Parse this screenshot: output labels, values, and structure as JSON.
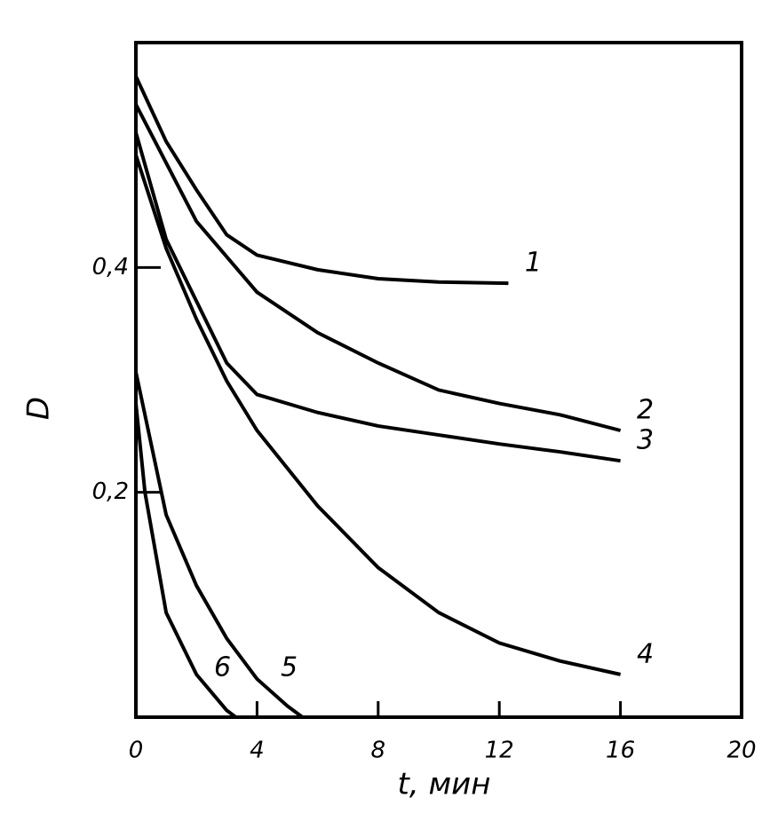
{
  "chart_data": {
    "type": "line",
    "x_label": "t, мин",
    "y_label": "D",
    "xlim": [
      0,
      20
    ],
    "ylim": [
      0,
      0.6
    ],
    "xticks": [
      0,
      4,
      8,
      12,
      16,
      20
    ],
    "yticks": [
      {
        "value": 0.2,
        "label": "0,2"
      },
      {
        "value": 0.4,
        "label": "0,4"
      }
    ],
    "series": [
      {
        "name": "1",
        "color": "#000000",
        "x": [
          0,
          1,
          2,
          3,
          4,
          6,
          8,
          10,
          12.3
        ],
        "values": [
          0.57,
          0.512,
          0.469,
          0.429,
          0.411,
          0.398,
          0.39,
          0.387,
          0.386
        ]
      },
      {
        "name": "2",
        "color": "#000000",
        "x": [
          0,
          2,
          4,
          6,
          8,
          10,
          12,
          14,
          16
        ],
        "values": [
          0.545,
          0.441,
          0.378,
          0.342,
          0.315,
          0.291,
          0.279,
          0.269,
          0.255
        ]
      },
      {
        "name": "3",
        "color": "#000000",
        "x": [
          0,
          1,
          2,
          3,
          4,
          6,
          8,
          10,
          12,
          14,
          16
        ],
        "values": [
          0.52,
          0.425,
          0.37,
          0.315,
          0.287,
          0.271,
          0.259,
          0.251,
          0.243,
          0.236,
          0.228
        ]
      },
      {
        "name": "4",
        "color": "#000000",
        "x": [
          0,
          1,
          2,
          3,
          4,
          6,
          8,
          10,
          12,
          14,
          16
        ],
        "values": [
          0.5,
          0.417,
          0.354,
          0.299,
          0.255,
          0.188,
          0.133,
          0.093,
          0.066,
          0.05,
          0.038
        ]
      },
      {
        "name": "5",
        "color": "#000000",
        "x": [
          0,
          1,
          2,
          3,
          4,
          5,
          5.5
        ],
        "values": [
          0.307,
          0.18,
          0.117,
          0.07,
          0.034,
          0.01,
          0
        ]
      },
      {
        "name": "6",
        "color": "#000000",
        "x": [
          0,
          0.3,
          1,
          2,
          3,
          3.3
        ],
        "values": [
          0.279,
          0.2,
          0.093,
          0.038,
          0.006,
          0
        ]
      }
    ]
  }
}
